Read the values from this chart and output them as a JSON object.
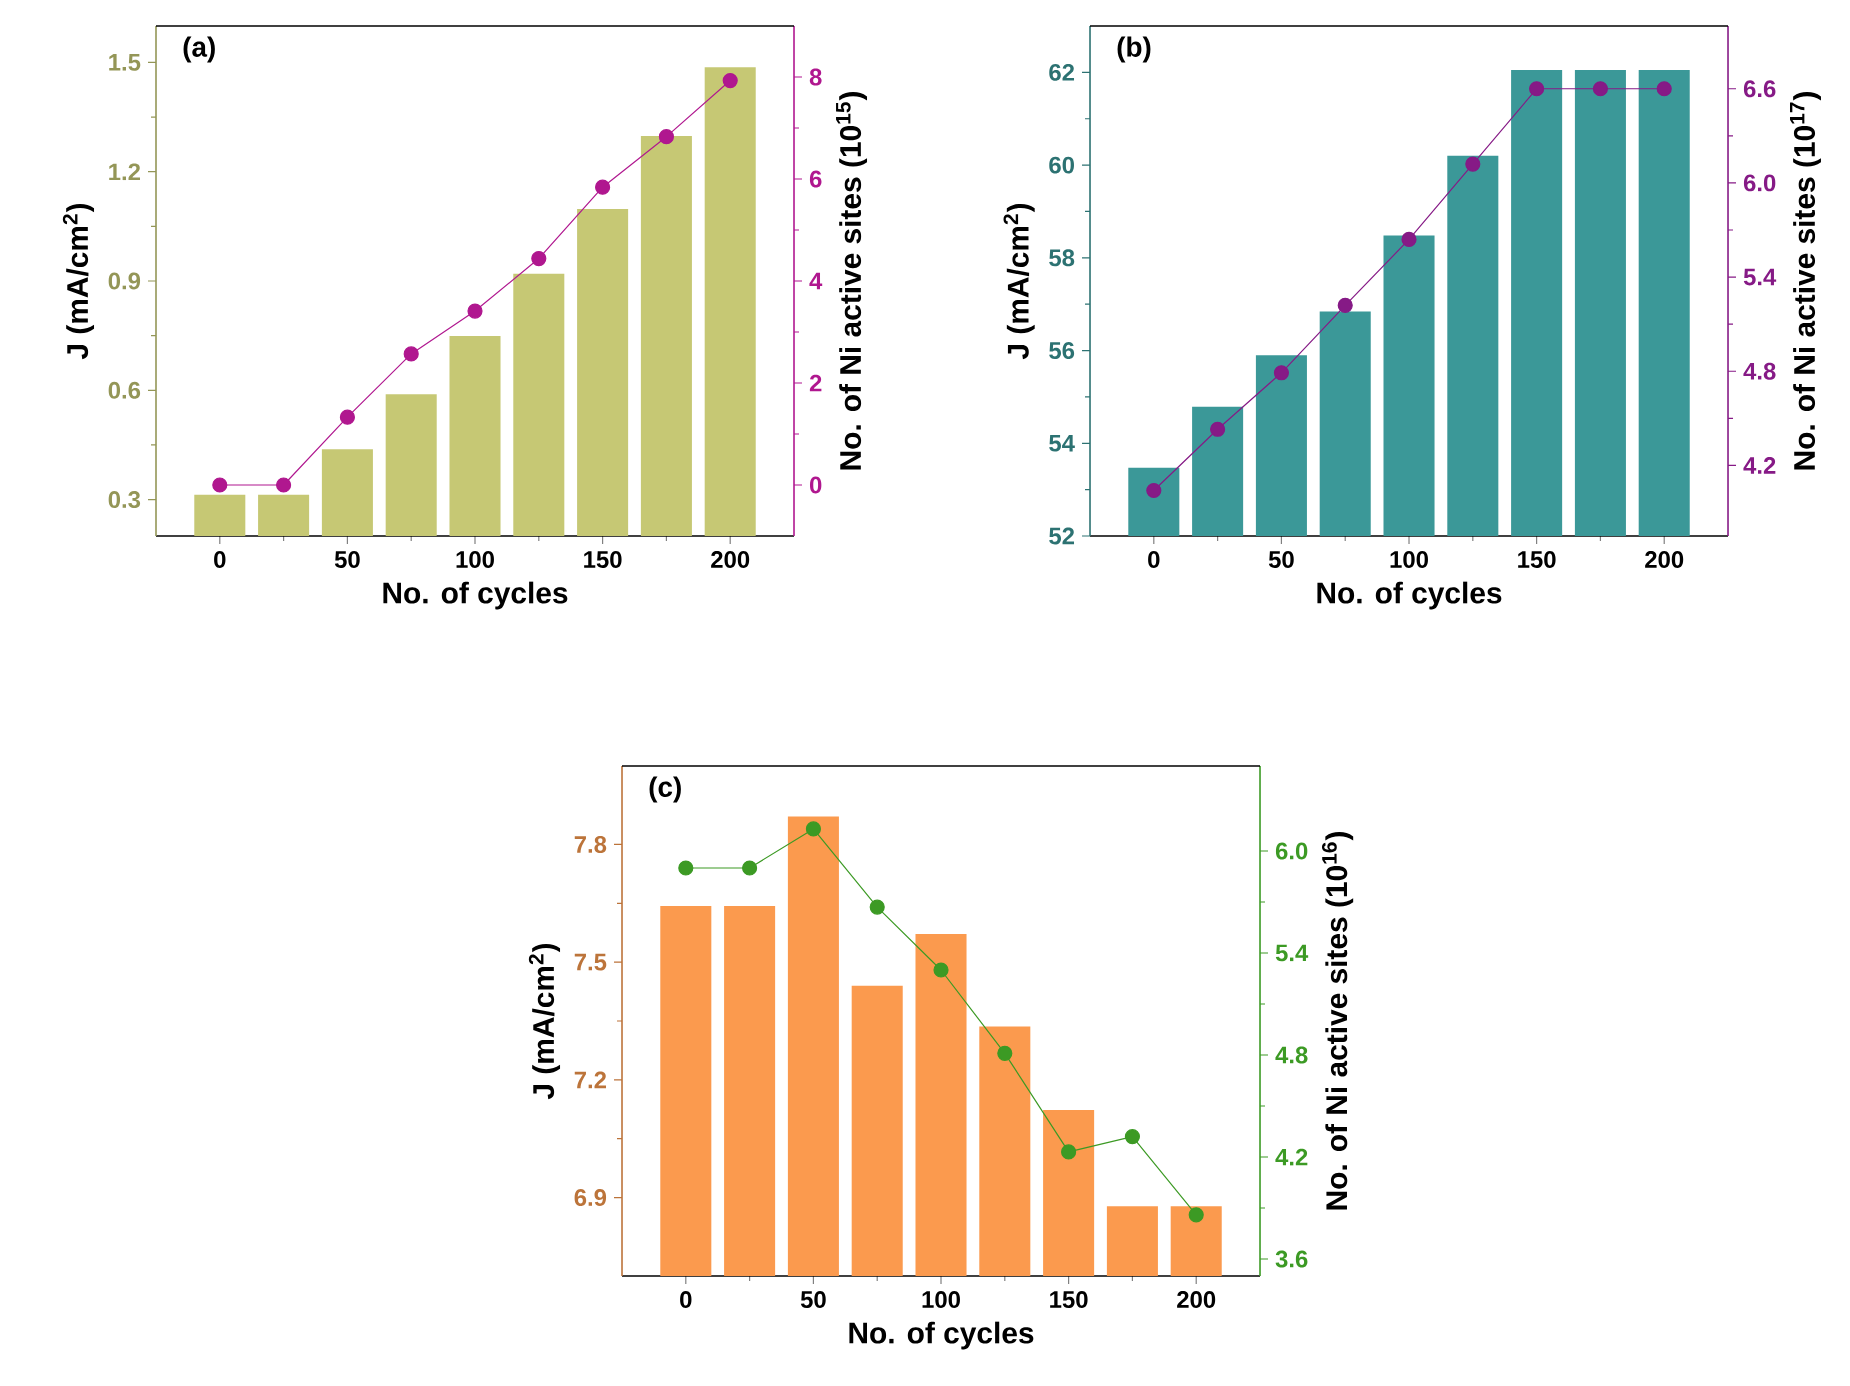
{
  "chart_data": [
    {
      "type": "bar",
      "title": "(a)",
      "xlabel": "No. of cycles",
      "ylabel": "J (mA/cm$^{2}$)",
      "y2label": "No. of Ni active sites (10$^{15}$)",
      "x": [
        0,
        25,
        50,
        75,
        100,
        125,
        150,
        175,
        200
      ],
      "xlim": [
        -25,
        225
      ],
      "xticks": [
        0,
        50,
        100,
        150,
        200
      ],
      "ylim": [
        0.2,
        1.6
      ],
      "yticks": [
        0.3,
        0.6,
        0.9,
        1.2,
        1.5
      ],
      "y2lim": [
        -1,
        9
      ],
      "y2ticks": [
        0,
        2,
        4,
        6,
        8
      ],
      "series": [
        {
          "color": "#c6c874",
          "values": [
            0.313,
            0.313,
            0.438,
            0.589,
            0.749,
            0.92,
            1.098,
            1.298,
            1.487
          ]
        },
        {
          "type": "line",
          "axis": "y2",
          "marker": "circle",
          "color": "#b0178f",
          "values": [
            0,
            0,
            1.33,
            2.57,
            3.41,
            4.44,
            5.84,
            6.83,
            7.93
          ]
        }
      ]
    },
    {
      "type": "bar",
      "title": "(b)",
      "xlabel": "No. of cycles",
      "ylabel": "J (mA/cm$^{2}$)",
      "y2label": "No. of Ni active sites (10$^{17}$)",
      "x": [
        0,
        25,
        50,
        75,
        100,
        125,
        150,
        175,
        200
      ],
      "xlim": [
        -25,
        225
      ],
      "xticks": [
        0,
        50,
        100,
        150,
        200
      ],
      "ylim": [
        52,
        63
      ],
      "yticks": [
        52,
        54,
        56,
        58,
        60,
        62
      ],
      "y2lim": [
        3.75,
        7.0
      ],
      "y2ticks": [
        4.2,
        4.8,
        5.4,
        {
          "value": 6.0,
          "label": "6.0"
        },
        6.6
      ],
      "series": [
        {
          "color": "#3b9898",
          "values": [
            53.47,
            54.79,
            55.9,
            56.84,
            58.48,
            60.2,
            62.05,
            62.05,
            62.05
          ]
        },
        {
          "type": "line",
          "axis": "y2",
          "marker": "circle",
          "color": "#861a86",
          "values": [
            4.04,
            4.43,
            4.79,
            5.22,
            5.64,
            6.12,
            6.6,
            6.6,
            6.6
          ]
        }
      ]
    },
    {
      "type": "bar",
      "title": "(c)",
      "xlabel": "No. of cycles",
      "ylabel": "J (mA/cm$^{2}$)",
      "y2label": "No. of Ni active sites (10$^{16}$)",
      "x": [
        0,
        25,
        50,
        75,
        100,
        125,
        150,
        175,
        200
      ],
      "xlim": [
        -25,
        225
      ],
      "xticks": [
        0,
        50,
        100,
        150,
        200
      ],
      "ylim": [
        6.7,
        8.0
      ],
      "yticks": [
        6.9,
        7.2,
        7.5,
        7.8
      ],
      "y2lim": [
        3.5,
        6.5
      ],
      "y2ticks": [
        3.6,
        4.2,
        4.8,
        5.4,
        {
          "value": 6.0,
          "label": "6.0"
        }
      ],
      "series": [
        {
          "color": "#fb9a4e",
          "values": [
            7.643,
            7.643,
            7.871,
            7.44,
            7.572,
            7.336,
            7.123,
            6.878,
            6.878
          ]
        },
        {
          "type": "line",
          "axis": "y2",
          "marker": "circle",
          "color": "#3c9a24",
          "values": [
            5.9,
            5.9,
            6.13,
            5.67,
            5.3,
            4.81,
            4.23,
            4.32,
            3.86
          ]
        }
      ]
    }
  ]
}
